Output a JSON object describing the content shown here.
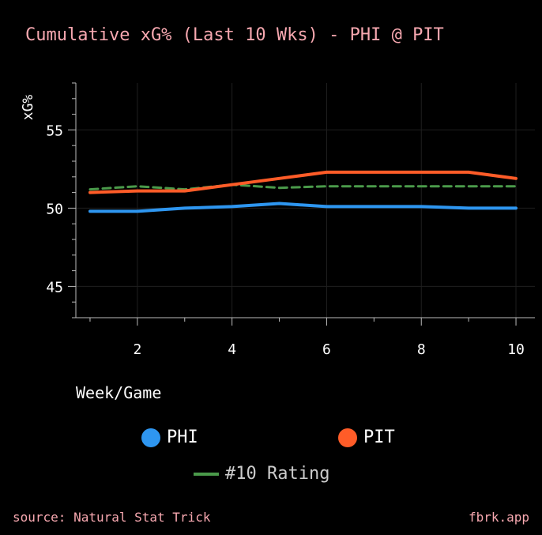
{
  "title": "Cumulative xG% (Last 10 Wks) - PHI @ PIT",
  "footer": {
    "source": "source: Natural Stat Trick",
    "brand": "fbrk.app"
  },
  "chart_data": {
    "type": "line",
    "title": "Cumulative xG% (Last 10 Wks) - PHI @ PIT",
    "xlabel": "Week/Game",
    "ylabel": "xG%",
    "xlim": [
      0.7,
      10.4
    ],
    "ylim": [
      43,
      58
    ],
    "xticks": [
      2,
      4,
      6,
      8,
      10
    ],
    "yticks": [
      45,
      50,
      55
    ],
    "grid": true,
    "x": [
      1,
      2,
      3,
      4,
      5,
      6,
      7,
      8,
      9,
      10
    ],
    "series": [
      {
        "name": "PHI",
        "color": "#2e96f0",
        "style": "solid",
        "values": [
          49.8,
          49.8,
          50.0,
          50.1,
          50.3,
          50.1,
          50.1,
          50.1,
          50.0,
          50.0
        ]
      },
      {
        "name": "PIT",
        "color": "#ff5c28",
        "style": "solid",
        "values": [
          51.0,
          51.1,
          51.1,
          51.5,
          51.9,
          52.3,
          52.3,
          52.3,
          52.3,
          51.9
        ]
      },
      {
        "name": "#10 Rating",
        "color": "#4a9a4a",
        "style": "dashed",
        "values": [
          51.2,
          51.4,
          51.2,
          51.5,
          51.3,
          51.4,
          51.4,
          51.4,
          51.4,
          51.4
        ]
      }
    ],
    "legend": {
      "phi": "PHI",
      "pit": "PIT",
      "rating": "#10 Rating"
    }
  }
}
